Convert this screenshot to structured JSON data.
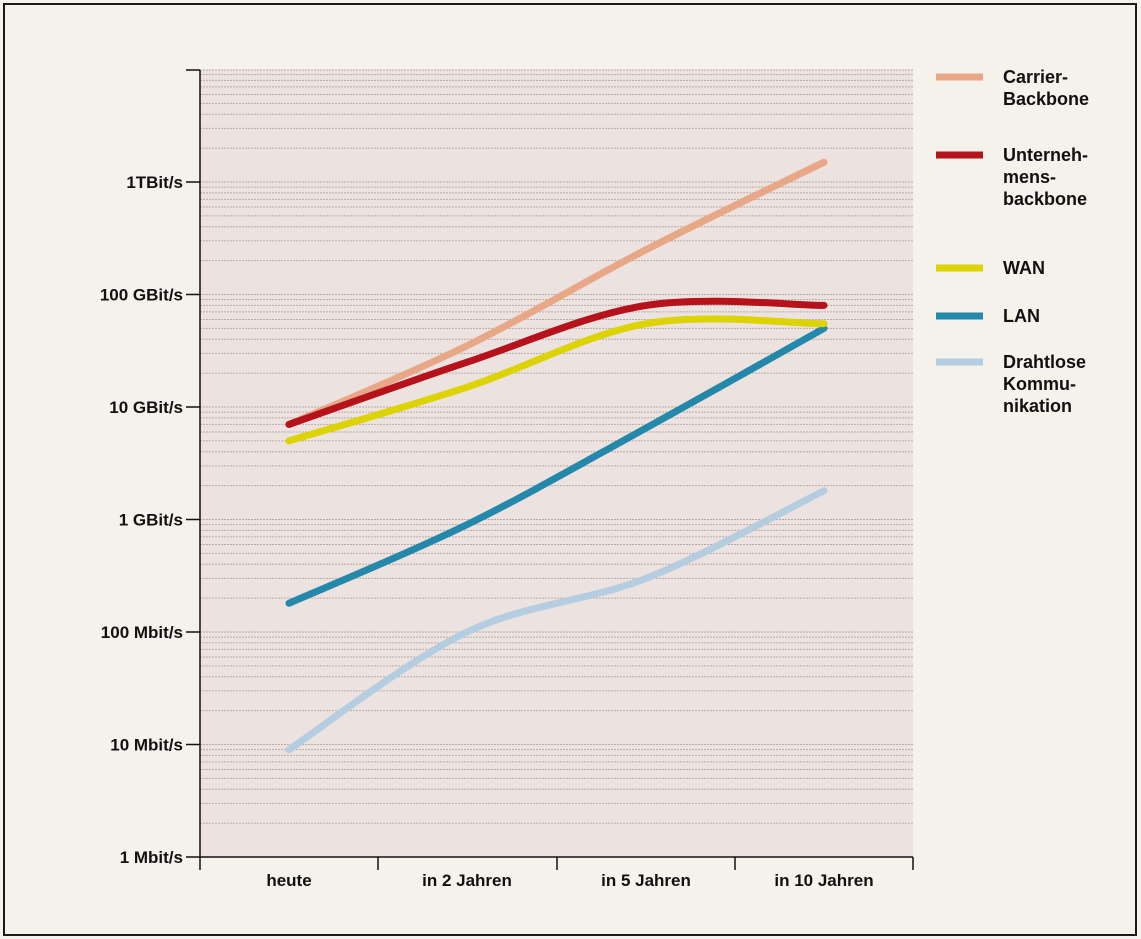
{
  "chart_data": {
    "type": "line",
    "y_scale": "log",
    "y_unit": "bit/s",
    "grid": true,
    "legend_position": "right",
    "categories": [
      "heute",
      "in 2 Jahren",
      "in 5 Jahren",
      "in 10 Jahren"
    ],
    "y_ticks": [
      {
        "label": "1 Mbit/s",
        "value": 1000000
      },
      {
        "label": "10 Mbit/s",
        "value": 10000000
      },
      {
        "label": "100 Mbit/s",
        "value": 100000000
      },
      {
        "label": "1 GBit/s",
        "value": 1000000000
      },
      {
        "label": "10 GBit/s",
        "value": 10000000000
      },
      {
        "label": "100 GBit/s",
        "value": 100000000000
      },
      {
        "label": "1TBit/s",
        "value": 1000000000000
      }
    ],
    "ylim": [
      1000000,
      10000000000000
    ],
    "series": [
      {
        "name": "Carrier-\nBackbone",
        "color": "#e8a787",
        "values": [
          7000000000,
          35000000000,
          250000000000,
          1500000000000
        ]
      },
      {
        "name": "Unterneh-\nmens-\nbackbone",
        "color": "#b5121b",
        "values": [
          7000000000,
          25000000000,
          80000000000,
          80000000000
        ]
      },
      {
        "name": "WAN",
        "color": "#dcd300",
        "values": [
          5000000000,
          15000000000,
          55000000000,
          55000000000
        ]
      },
      {
        "name": "LAN",
        "color": "#2488aa",
        "values": [
          180000000,
          900000000,
          6500000000,
          50000000000
        ]
      },
      {
        "name": "Drahtlose\nKommu-\nnikation",
        "color": "#b4cde0",
        "values": [
          9000000,
          100000000,
          300000000,
          1800000000
        ]
      }
    ]
  }
}
